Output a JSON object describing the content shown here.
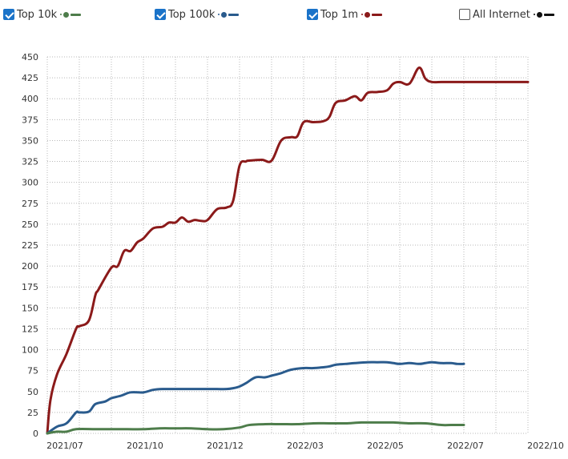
{
  "legend": [
    {
      "label": "Top 10k",
      "checked": true,
      "color": "#4e7d4b"
    },
    {
      "label": "Top 100k",
      "checked": true,
      "color": "#2a5b8d"
    },
    {
      "label": "Top 1m",
      "checked": true,
      "color": "#8b1a1a"
    },
    {
      "label": "All Internet",
      "checked": false,
      "color": "#111111"
    }
  ],
  "chart_data": {
    "type": "line",
    "title": "",
    "xlabel": "",
    "ylabel": "",
    "ylim": [
      0,
      450
    ],
    "y_ticks": [
      0,
      25,
      50,
      75,
      100,
      125,
      150,
      175,
      200,
      225,
      250,
      275,
      300,
      325,
      350,
      375,
      400,
      425,
      450
    ],
    "x_ticks": [
      "2021/07",
      "2021/10",
      "2021/12",
      "2022/03",
      "2022/05",
      "2022/07",
      "2022/10"
    ],
    "grid": true,
    "series": [
      {
        "name": "Top 1m",
        "color": "#8b1a1a",
        "x": [
          0,
          0.1,
          0.3,
          0.6,
          0.9,
          1.0,
          1.3,
          1.5,
          1.6,
          2.0,
          2.2,
          2.4,
          2.6,
          2.8,
          3.0,
          3.3,
          3.6,
          3.8,
          4.0,
          4.2,
          4.4,
          4.6,
          4.8,
          5.0,
          5.3,
          5.6,
          5.8,
          6.0,
          6.2,
          6.3,
          6.7,
          7.0,
          7.3,
          7.6,
          7.8,
          8.0,
          8.3,
          8.6,
          8.8,
          9.0,
          9.3,
          9.6,
          9.8,
          10.0,
          10.3,
          10.6,
          10.8,
          11.0,
          11.3,
          11.6,
          11.8,
          12.0,
          12.3,
          12.6,
          12.8,
          13.0,
          13.2,
          13.4,
          13.6,
          13.8,
          14.0,
          14.2,
          14.4,
          14.6,
          14.8,
          15.0
        ],
        "values": [
          0,
          40,
          70,
          95,
          125,
          128,
          135,
          165,
          172,
          198,
          200,
          218,
          218,
          228,
          233,
          245,
          247,
          252,
          252,
          258,
          253,
          255,
          254,
          255,
          268,
          270,
          278,
          320,
          325,
          326,
          327,
          326,
          350,
          354,
          355,
          372,
          372,
          373,
          378,
          395,
          398,
          403,
          398,
          407,
          408,
          410,
          418,
          420,
          418,
          437,
          424,
          420,
          420,
          420,
          420,
          420,
          420,
          420,
          420,
          420,
          420,
          420,
          420,
          420,
          420,
          420
        ]
      },
      {
        "name": "Top 100k",
        "color": "#2a5b8d",
        "x": [
          0,
          0.3,
          0.6,
          0.9,
          1.0,
          1.3,
          1.5,
          1.8,
          2.0,
          2.3,
          2.6,
          3.0,
          3.3,
          3.6,
          4.0,
          4.3,
          4.6,
          5.0,
          5.3,
          5.6,
          5.8,
          6.0,
          6.2,
          6.5,
          6.8,
          7.0,
          7.3,
          7.6,
          8.0,
          8.3,
          8.6,
          8.8,
          9.0,
          9.3,
          9.6,
          10.0,
          10.3,
          10.6,
          10.8,
          11.0,
          11.3,
          11.6,
          11.8,
          12.0,
          12.3,
          12.6,
          12.8,
          13.0
        ],
        "values": [
          0,
          8,
          12,
          25,
          25,
          26,
          35,
          38,
          42,
          45,
          49,
          49,
          52,
          53,
          53,
          53,
          53,
          53,
          53,
          53,
          54,
          56,
          60,
          67,
          67,
          69,
          72,
          76,
          78,
          78,
          79,
          80,
          82,
          83,
          84,
          85,
          85,
          85,
          84,
          83,
          84,
          83,
          84,
          85,
          84,
          84,
          83,
          83
        ]
      },
      {
        "name": "Top 10k",
        "color": "#4e7d4b",
        "x": [
          0,
          0.3,
          0.6,
          0.9,
          1.5,
          2.0,
          2.5,
          3.0,
          3.5,
          4.0,
          4.5,
          5.0,
          5.5,
          6.0,
          6.3,
          6.8,
          7.3,
          7.8,
          8.3,
          8.8,
          9.3,
          9.8,
          10.3,
          10.8,
          11.3,
          11.8,
          12.3,
          12.6,
          13.0
        ],
        "values": [
          0,
          2,
          2,
          5,
          5,
          5,
          5,
          5,
          6,
          6,
          6,
          5,
          5,
          7,
          10,
          11,
          11,
          11,
          12,
          12,
          12,
          13,
          13,
          13,
          12,
          12,
          10,
          10,
          10
        ]
      }
    ]
  }
}
